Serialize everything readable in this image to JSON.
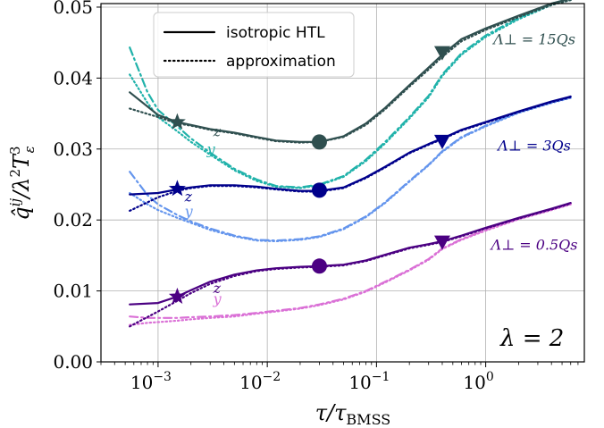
{
  "chart_data": {
    "type": "line",
    "xlabel": "τ/τ_BMSS",
    "ylabel": "q̂^ij / λ²T_ε³",
    "xscale": "log",
    "xlim": [
      0.0003,
      8
    ],
    "ylim": [
      0.0,
      0.0505
    ],
    "grid": true,
    "x_ticks": [
      {
        "value": 0.001,
        "base": "10",
        "exp": "−3"
      },
      {
        "value": 0.01,
        "base": "10",
        "exp": "−2"
      },
      {
        "value": 0.1,
        "base": "10",
        "exp": "−1"
      },
      {
        "value": 1,
        "base": "10",
        "exp": "0"
      }
    ],
    "y_ticks": [
      {
        "value": 0.0,
        "label": "0.00"
      },
      {
        "value": 0.01,
        "label": "0.01"
      },
      {
        "value": 0.02,
        "label": "0.02"
      },
      {
        "value": 0.03,
        "label": "0.03"
      },
      {
        "value": 0.04,
        "label": "0.04"
      },
      {
        "value": 0.05,
        "label": "0.05"
      }
    ],
    "legend": {
      "placement": "top-center",
      "entries": [
        {
          "label": "isotropic HTL",
          "style": "solid"
        },
        {
          "label": "approximation",
          "style": "dotted"
        }
      ]
    },
    "annotations": {
      "lambda": "λ = 2",
      "z": "z",
      "y": "y"
    },
    "groups": [
      {
        "label": "Λ⊥ = 15Qs",
        "color_z": "#2f4f4f",
        "color_y": "#20b2aa",
        "z_solid": {
          "x": [
            0.00055,
            0.001,
            0.0015,
            0.002,
            0.003,
            0.005,
            0.008,
            0.012,
            0.02,
            0.03,
            0.05,
            0.08,
            0.12,
            0.2,
            0.3,
            0.4,
            0.6,
            1,
            2,
            4,
            6
          ],
          "y": [
            0.038,
            0.0348,
            0.0338,
            0.0334,
            0.0328,
            0.0323,
            0.0317,
            0.0312,
            0.031,
            0.031,
            0.0318,
            0.0336,
            0.0358,
            0.039,
            0.0415,
            0.0433,
            0.0455,
            0.047,
            0.0488,
            0.0505,
            0.0512
          ]
        },
        "z_dotted": {
          "x": [
            0.00055,
            0.001,
            0.0015,
            0.002,
            0.003,
            0.005,
            0.008,
            0.012,
            0.02,
            0.03,
            0.05,
            0.08,
            0.12,
            0.2,
            0.3,
            0.4,
            0.6,
            1,
            2,
            4,
            6
          ],
          "y": [
            0.0357,
            0.0345,
            0.0336,
            0.0333,
            0.0327,
            0.0322,
            0.0316,
            0.0311,
            0.0309,
            0.031,
            0.0317,
            0.0334,
            0.0356,
            0.0388,
            0.0412,
            0.043,
            0.0452,
            0.0468,
            0.0486,
            0.0503,
            0.051
          ]
        },
        "y_dashdot": {
          "x": [
            0.00055,
            0.0008,
            0.001,
            0.0015,
            0.002,
            0.003,
            0.005,
            0.008,
            0.012,
            0.02,
            0.03,
            0.05,
            0.08,
            0.12,
            0.2,
            0.3,
            0.4,
            0.6,
            1,
            2,
            4,
            6
          ],
          "y": [
            0.0443,
            0.038,
            0.0355,
            0.0332,
            0.0315,
            0.0295,
            0.0272,
            0.0257,
            0.0248,
            0.0246,
            0.025,
            0.0262,
            0.0285,
            0.031,
            0.0345,
            0.0375,
            0.0405,
            0.0435,
            0.046,
            0.0485,
            0.0505,
            0.0512
          ]
        },
        "y_dotted": {
          "x": [
            0.00055,
            0.0008,
            0.001,
            0.0015,
            0.002,
            0.003,
            0.005,
            0.008,
            0.012,
            0.02,
            0.03,
            0.05,
            0.08,
            0.12,
            0.2,
            0.3,
            0.4,
            0.6,
            1,
            2,
            4,
            6
          ],
          "y": [
            0.0405,
            0.0365,
            0.0345,
            0.0325,
            0.031,
            0.0292,
            0.027,
            0.0255,
            0.0247,
            0.0245,
            0.0249,
            0.0261,
            0.0283,
            0.0308,
            0.0343,
            0.0373,
            0.0403,
            0.0433,
            0.0458,
            0.0483,
            0.0503,
            0.051
          ]
        },
        "star": {
          "x": 0.0015,
          "y": 0.0338
        },
        "circle": {
          "x": 0.03,
          "y": 0.031
        },
        "triangle": {
          "x": 0.4,
          "y": 0.0435
        },
        "label_pos": {
          "x": 2.0,
          "y": 0.0448
        },
        "z_label": {
          "x": 0.0032,
          "y": 0.0318
        },
        "y_label": {
          "x": 0.0028,
          "y": 0.0293
        }
      },
      {
        "label": "Λ⊥ = 3Qs",
        "color_z": "#00008b",
        "color_y": "#6495ed",
        "z_solid": {
          "x": [
            0.00055,
            0.001,
            0.0015,
            0.002,
            0.003,
            0.005,
            0.008,
            0.012,
            0.02,
            0.03,
            0.05,
            0.08,
            0.12,
            0.2,
            0.3,
            0.4,
            0.6,
            1,
            2,
            4,
            6
          ],
          "y": [
            0.0236,
            0.0238,
            0.0243,
            0.0246,
            0.0249,
            0.0249,
            0.0247,
            0.0244,
            0.0241,
            0.0241,
            0.0246,
            0.026,
            0.0275,
            0.0295,
            0.0307,
            0.0315,
            0.0327,
            0.0338,
            0.0353,
            0.0367,
            0.0374
          ]
        },
        "z_dotted": {
          "x": [
            0.00055,
            0.001,
            0.0015,
            0.002,
            0.003,
            0.005,
            0.008,
            0.012,
            0.02,
            0.03,
            0.05,
            0.08,
            0.12,
            0.2,
            0.3,
            0.4,
            0.6,
            1,
            2,
            4,
            6
          ],
          "y": [
            0.0213,
            0.0232,
            0.0241,
            0.0245,
            0.0248,
            0.0248,
            0.0246,
            0.0243,
            0.024,
            0.024,
            0.0245,
            0.0259,
            0.0274,
            0.0294,
            0.0306,
            0.0314,
            0.0326,
            0.0337,
            0.0352,
            0.0366,
            0.0373
          ]
        },
        "y_dashdot": {
          "x": [
            0.00055,
            0.0008,
            0.001,
            0.0015,
            0.002,
            0.003,
            0.005,
            0.008,
            0.012,
            0.02,
            0.03,
            0.05,
            0.08,
            0.12,
            0.2,
            0.3,
            0.4,
            0.6,
            1,
            2,
            4,
            6
          ],
          "y": [
            0.0268,
            0.0235,
            0.0222,
            0.0207,
            0.0198,
            0.0188,
            0.0178,
            0.0172,
            0.0171,
            0.0173,
            0.0177,
            0.0188,
            0.0205,
            0.0225,
            0.0255,
            0.0278,
            0.0297,
            0.0317,
            0.0333,
            0.0352,
            0.0366,
            0.0373
          ]
        },
        "y_dotted": {
          "x": [
            0.00055,
            0.0008,
            0.001,
            0.0015,
            0.002,
            0.003,
            0.005,
            0.008,
            0.012,
            0.02,
            0.03,
            0.05,
            0.08,
            0.12,
            0.2,
            0.3,
            0.4,
            0.6,
            1,
            2,
            4,
            6
          ],
          "y": [
            0.0238,
            0.0222,
            0.0214,
            0.0203,
            0.0196,
            0.0186,
            0.0177,
            0.0171,
            0.017,
            0.0172,
            0.0176,
            0.0187,
            0.0204,
            0.0224,
            0.0254,
            0.0277,
            0.0296,
            0.0316,
            0.0332,
            0.0351,
            0.0365,
            0.0372
          ]
        },
        "star": {
          "x": 0.0015,
          "y": 0.0244
        },
        "circle": {
          "x": 0.03,
          "y": 0.0242
        },
        "triangle": {
          "x": 0.4,
          "y": 0.031
        },
        "label_pos": {
          "x": 2.0,
          "y": 0.0298
        },
        "z_label": {
          "x": 0.00175,
          "y": 0.0226
        },
        "y_label": {
          "x": 0.00175,
          "y": 0.0205
        }
      },
      {
        "label": "Λ⊥ = 0.5Qs",
        "color_z": "#4b0082",
        "color_y": "#da70d6",
        "z_solid": {
          "x": [
            0.00055,
            0.001,
            0.0015,
            0.002,
            0.003,
            0.005,
            0.008,
            0.012,
            0.02,
            0.03,
            0.05,
            0.08,
            0.12,
            0.2,
            0.3,
            0.4,
            0.6,
            1,
            2,
            4,
            6
          ],
          "y": [
            0.0081,
            0.0083,
            0.0092,
            0.0101,
            0.0113,
            0.0123,
            0.0129,
            0.0132,
            0.0134,
            0.0135,
            0.0137,
            0.0143,
            0.0151,
            0.0161,
            0.0166,
            0.017,
            0.0178,
            0.0189,
            0.0203,
            0.0216,
            0.0224
          ]
        },
        "z_dotted": {
          "x": [
            0.00055,
            0.001,
            0.0015,
            0.002,
            0.003,
            0.005,
            0.008,
            0.012,
            0.02,
            0.03,
            0.05,
            0.08,
            0.12,
            0.2,
            0.3,
            0.4,
            0.6,
            1,
            2,
            4,
            6
          ],
          "y": [
            0.005,
            0.0071,
            0.0086,
            0.0097,
            0.011,
            0.0121,
            0.0128,
            0.0131,
            0.0133,
            0.0134,
            0.0136,
            0.0142,
            0.015,
            0.016,
            0.0165,
            0.0169,
            0.0177,
            0.0188,
            0.0202,
            0.0215,
            0.0223
          ]
        },
        "y_dashdot": {
          "x": [
            0.00055,
            0.0008,
            0.001,
            0.0015,
            0.002,
            0.003,
            0.005,
            0.008,
            0.012,
            0.02,
            0.03,
            0.05,
            0.08,
            0.12,
            0.2,
            0.3,
            0.4,
            0.6,
            1,
            2,
            4,
            6
          ],
          "y": [
            0.0064,
            0.0062,
            0.0062,
            0.0062,
            0.0063,
            0.0064,
            0.0066,
            0.0069,
            0.0072,
            0.0076,
            0.0081,
            0.0089,
            0.01,
            0.0113,
            0.013,
            0.0145,
            0.016,
            0.0173,
            0.0186,
            0.0202,
            0.0215,
            0.0223
          ]
        },
        "y_dotted": {
          "x": [
            0.00055,
            0.0008,
            0.001,
            0.0015,
            0.002,
            0.003,
            0.005,
            0.008,
            0.012,
            0.02,
            0.03,
            0.05,
            0.08,
            0.12,
            0.2,
            0.3,
            0.4,
            0.6,
            1,
            2,
            4,
            6
          ],
          "y": [
            0.0052,
            0.0055,
            0.0056,
            0.0058,
            0.006,
            0.0062,
            0.0064,
            0.0068,
            0.0071,
            0.0075,
            0.008,
            0.0088,
            0.0099,
            0.0112,
            0.0129,
            0.0144,
            0.0159,
            0.0172,
            0.0185,
            0.0201,
            0.0214,
            0.0222
          ]
        },
        "star": {
          "x": 0.0015,
          "y": 0.0092
        },
        "circle": {
          "x": 0.03,
          "y": 0.0135
        },
        "triangle": {
          "x": 0.4,
          "y": 0.0168
        },
        "label_pos": {
          "x": 2.0,
          "y": 0.0158
        },
        "z_label": {
          "x": 0.0032,
          "y": 0.0097
        },
        "y_label": {
          "x": 0.0032,
          "y": 0.0082
        }
      }
    ]
  }
}
